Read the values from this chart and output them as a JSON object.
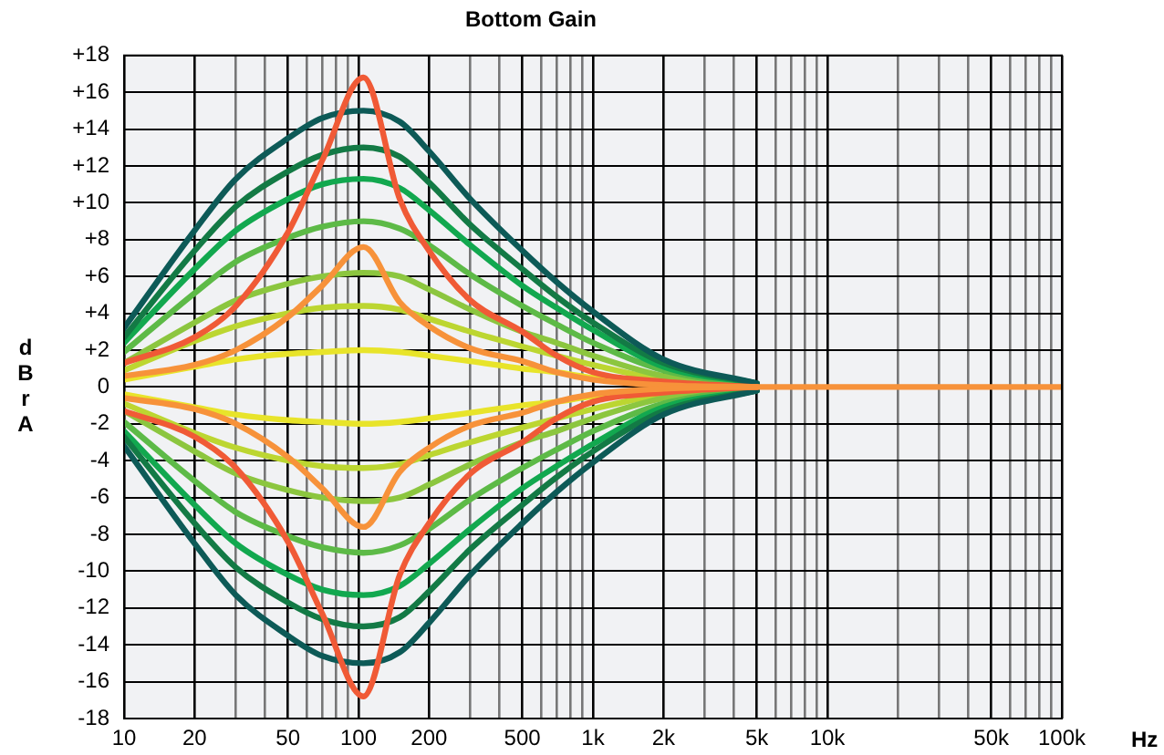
{
  "chart_data": {
    "type": "line",
    "title": "Bottom Gain",
    "xlabel": "Hz",
    "ylabel": "dBrA",
    "log": "x",
    "grid": true,
    "marker": "none",
    "line_style": "solid",
    "x": [
      10,
      20,
      30,
      50,
      70,
      105,
      150,
      200,
      300,
      500,
      700,
      1000,
      2000,
      5000,
      10000,
      100000
    ],
    "xlim": [
      10,
      100000
    ],
    "xticks": [
      10,
      20,
      {
        "value": 30,
        "label": null
      },
      {
        "value": 40,
        "label": null
      },
      50,
      {
        "value": 60,
        "label": null
      },
      {
        "value": 70,
        "label": null
      },
      {
        "value": 80,
        "label": null
      },
      {
        "value": 90,
        "label": null
      },
      100,
      200,
      {
        "value": 300,
        "label": null
      },
      {
        "value": 400,
        "label": null
      },
      500,
      {
        "value": 600,
        "label": null
      },
      {
        "value": 700,
        "label": null
      },
      {
        "value": 800,
        "label": null
      },
      {
        "value": 900,
        "label": null
      },
      {
        "value": 1000,
        "label": "1k"
      },
      {
        "value": 2000,
        "label": "2k"
      },
      {
        "value": 3000,
        "label": null
      },
      {
        "value": 4000,
        "label": null
      },
      {
        "value": 5000,
        "label": "5k"
      },
      {
        "value": 6000,
        "label": null
      },
      {
        "value": 7000,
        "label": null
      },
      {
        "value": 8000,
        "label": null
      },
      {
        "value": 9000,
        "label": null
      },
      {
        "value": 10000,
        "label": "10k"
      },
      {
        "value": 20000,
        "label": null
      },
      {
        "value": 30000,
        "label": null
      },
      {
        "value": 40000,
        "label": null
      },
      {
        "value": 50000,
        "label": "50k"
      },
      {
        "value": 60000,
        "label": null
      },
      {
        "value": 70000,
        "label": null
      },
      {
        "value": 80000,
        "label": null
      },
      {
        "value": 90000,
        "label": null
      },
      {
        "value": 100000,
        "label": "100k"
      }
    ],
    "ylim": [
      -18,
      18
    ],
    "yticks": [
      -18,
      -16,
      -14,
      -12,
      -10,
      -8,
      -6,
      -4,
      -2,
      0,
      {
        "value": 2,
        "label": "+2"
      },
      {
        "value": 4,
        "label": "+4"
      },
      {
        "value": 6,
        "label": "+6"
      },
      {
        "value": 8,
        "label": "+8"
      },
      {
        "value": 10,
        "label": "+10"
      },
      {
        "value": 12,
        "label": "+12"
      },
      {
        "value": 14,
        "label": "+14"
      },
      {
        "value": 16,
        "label": "+16"
      },
      {
        "value": 18,
        "label": "+18"
      }
    ],
    "series": [
      {
        "color": "#e8e42a",
        "values": [
          0.4,
          1.1,
          1.5,
          1.8,
          1.9,
          2,
          1.9,
          1.7,
          1.4,
          1,
          0.8,
          0.5,
          0.2,
          0,
          null,
          null
        ]
      },
      {
        "color": "#e8e42a",
        "values": [
          -0.4,
          -1.1,
          -1.5,
          -1.8,
          -1.9,
          -2,
          -1.9,
          -1.7,
          -1.4,
          -1,
          -0.8,
          -0.5,
          -0.2,
          0,
          null,
          null
        ]
      },
      {
        "color": "#bcd631",
        "values": [
          0.9,
          2.5,
          3.3,
          4,
          4.3,
          4.4,
          4.2,
          3.7,
          3,
          2.2,
          1.7,
          1.2,
          0.4,
          0.1,
          null,
          null
        ]
      },
      {
        "color": "#bcd631",
        "values": [
          -0.9,
          -2.5,
          -3.3,
          -4,
          -4.3,
          -4.4,
          -4.2,
          -3.7,
          -3,
          -2.2,
          -1.7,
          -1.2,
          -0.4,
          -0.1,
          null,
          null
        ]
      },
      {
        "color": "#8cc63f",
        "values": [
          1.3,
          3.5,
          4.7,
          5.6,
          6,
          6.2,
          6,
          5.3,
          4.2,
          3,
          2.4,
          1.7,
          0.6,
          0.1,
          null,
          null
        ]
      },
      {
        "color": "#8cc63f",
        "values": [
          -1.3,
          -3.5,
          -4.7,
          -5.6,
          -6,
          -6.2,
          -6,
          -5.3,
          -4.2,
          -3,
          -2.4,
          -1.7,
          -0.6,
          -0.1,
          null,
          null
        ]
      },
      {
        "color": "#5dba47",
        "values": [
          1.9,
          5.1,
          6.8,
          8.1,
          8.7,
          9,
          8.6,
          7.7,
          6.1,
          4.4,
          3.4,
          2.4,
          0.9,
          0.1,
          null,
          null
        ]
      },
      {
        "color": "#5dba47",
        "values": [
          -1.9,
          -5.1,
          -6.8,
          -8.1,
          -8.7,
          -9,
          -8.6,
          -7.7,
          -6.1,
          -4.4,
          -3.4,
          -2.4,
          -0.9,
          -0.1,
          null,
          null
        ]
      },
      {
        "color": "#12a84f",
        "values": [
          2.4,
          6.4,
          8.5,
          10.2,
          11,
          11.3,
          10.8,
          9.6,
          7.7,
          5.5,
          4.3,
          3.1,
          1.1,
          0.2,
          null,
          null
        ]
      },
      {
        "color": "#12a84f",
        "values": [
          -2.4,
          -6.4,
          -8.5,
          -10.2,
          -11,
          -11.3,
          -10.8,
          -9.6,
          -7.7,
          -5.5,
          -4.3,
          -3.1,
          -1.1,
          -0.2,
          null,
          null
        ]
      },
      {
        "color": "#137a45",
        "values": [
          2.7,
          7.4,
          9.8,
          11.7,
          12.6,
          13,
          12.5,
          11.1,
          8.8,
          6.4,
          4.9,
          3.5,
          1.3,
          0.2,
          null,
          null
        ]
      },
      {
        "color": "#137a45",
        "values": [
          -2.7,
          -7.4,
          -9.8,
          -11.7,
          -12.6,
          -13,
          -12.5,
          -11.1,
          -8.8,
          -6.4,
          -4.9,
          -3.5,
          -1.3,
          -0.2,
          null,
          null
        ]
      },
      {
        "color": "#0d5a57",
        "values": [
          3.2,
          8.5,
          11.3,
          13.5,
          14.6,
          15,
          14.4,
          12.8,
          10.2,
          7.4,
          5.7,
          4.1,
          1.5,
          0.2,
          null,
          null
        ]
      },
      {
        "color": "#0d5a57",
        "values": [
          -3.2,
          -8.5,
          -11.3,
          -13.5,
          -14.6,
          -15,
          -14.4,
          -12.8,
          -10.2,
          -7.4,
          -5.7,
          -4.1,
          -1.5,
          -0.2,
          null,
          null
        ]
      },
      {
        "color": "#f05a36",
        "values": [
          1.3,
          2.7,
          4.4,
          8.4,
          12.3,
          16.8,
          10.2,
          7.4,
          4.7,
          3,
          1.7,
          0.8,
          0.3,
          0,
          null,
          null
        ]
      },
      {
        "color": "#f05a36",
        "values": [
          -1.3,
          -2.7,
          -4.4,
          -8.4,
          -12.3,
          -16.8,
          -10.2,
          -7.4,
          -4.7,
          -3,
          -1.7,
          -0.8,
          -0.3,
          0,
          null,
          null
        ]
      },
      {
        "color": "#f7923a",
        "values": [
          0.6,
          1.2,
          2,
          3.8,
          5.5,
          7.6,
          4.6,
          3.3,
          2.1,
          1.4,
          0.8,
          0.4,
          0.1,
          0,
          null,
          null
        ]
      },
      {
        "color": "#f7923a",
        "values": [
          -0.6,
          -1.2,
          -2,
          -3.8,
          -5.5,
          -7.6,
          -4.6,
          -3.3,
          -2.1,
          -1.4,
          -0.8,
          -0.4,
          -0.1,
          0,
          0,
          0
        ]
      }
    ]
  }
}
